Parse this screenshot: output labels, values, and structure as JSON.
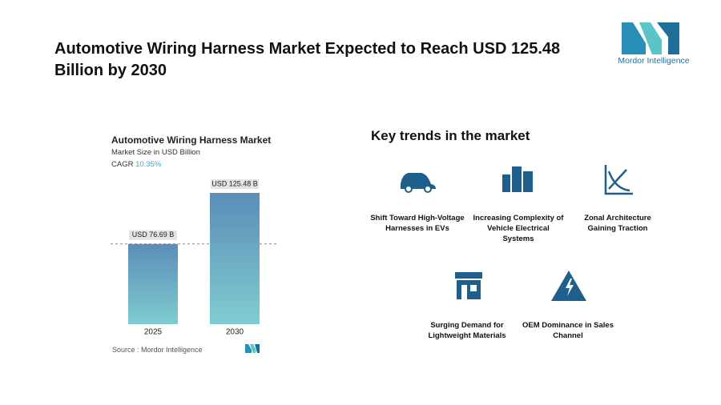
{
  "header": {
    "title": "Automotive Wiring Harness Market Expected to Reach USD 125.48 Billion by 2030",
    "logo": "Mordor Intelligence"
  },
  "chart_data": {
    "type": "bar",
    "title": "Automotive Wiring Harness Market",
    "subtitle": "Market Size in USD Billion",
    "cagr_label": "CAGR",
    "cagr_value": "10.35%",
    "categories": [
      "2025",
      "2030"
    ],
    "values": [
      76.69,
      125.48
    ],
    "value_labels": [
      "USD 76.69 B",
      "USD 125.48 B"
    ],
    "source": "Source :  Mordor Intelligence"
  },
  "trends": {
    "title": "Key trends in the market",
    "items": [
      "Shift Toward High-Voltage Harnesses in EVs",
      "Increasing Complexity of Vehicle Electrical Systems",
      "Zonal Architecture Gaining Traction",
      "Surging Demand for Lightweight Materials",
      "OEM Dominance in Sales Channel"
    ]
  }
}
